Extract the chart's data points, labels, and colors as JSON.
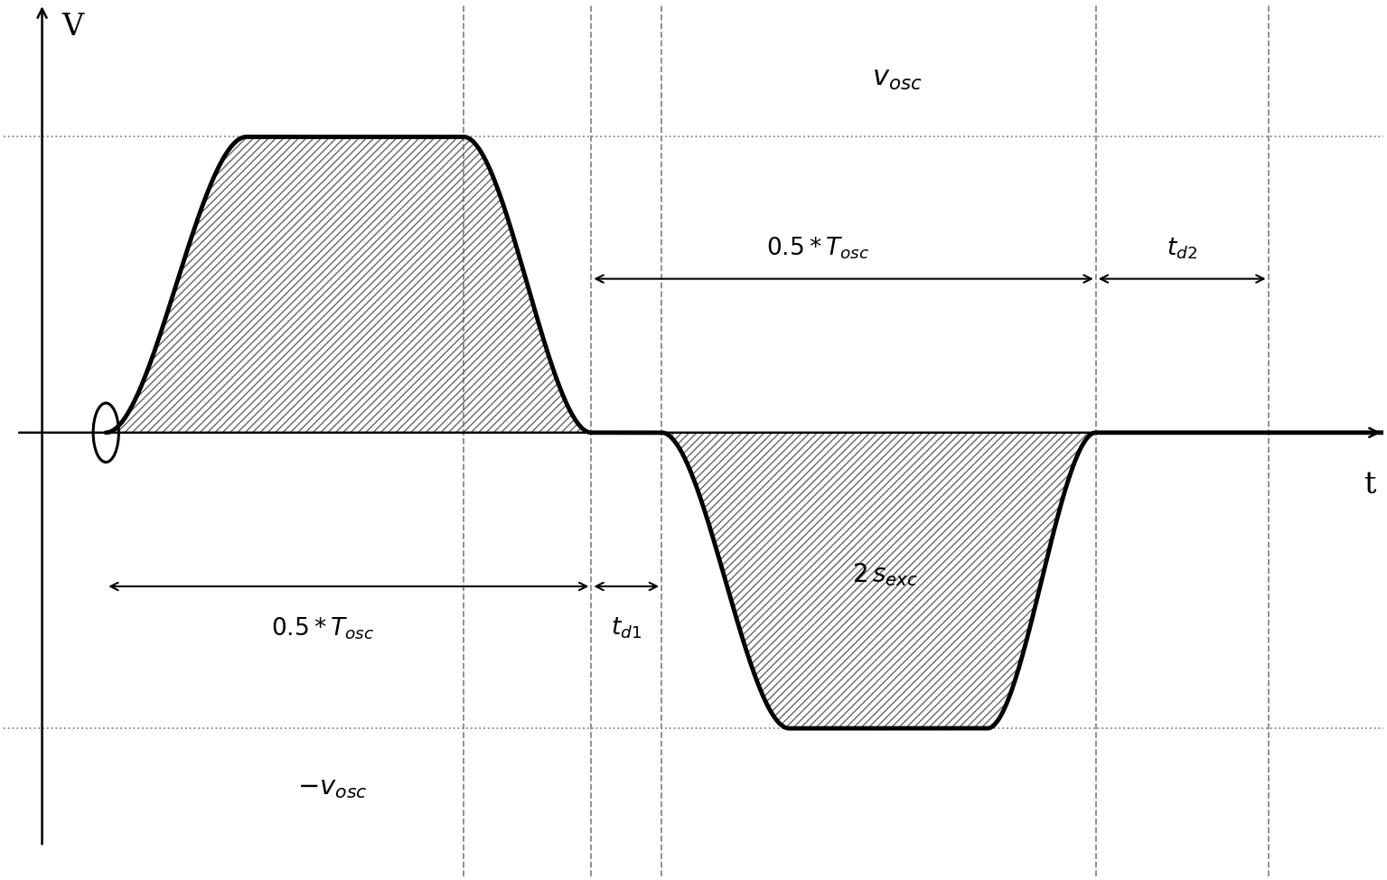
{
  "bg_color": "#ffffff",
  "signal_color": "#000000",
  "hatch_color": "#555555",
  "dashed_color": "#888888",
  "dotted_color": "#888888",
  "v_osc": 1.0,
  "t_start": 0.5,
  "t_rise_start": 0.5,
  "t_rise_end": 1.6,
  "t_flat_start": 1.6,
  "t_flat_end": 3.3,
  "t_fall_start": 3.3,
  "t_fall_end": 4.3,
  "t_zero1_start": 4.3,
  "t_zero1_end": 4.85,
  "t_neg_fall_start": 4.85,
  "t_neg_fall_end": 5.85,
  "t_neg_flat_start": 5.85,
  "t_neg_flat_end": 7.4,
  "t_neg_rise_start": 7.4,
  "t_neg_rise_end": 8.25,
  "t_zero2_start": 8.25,
  "t_zero2_end": 9.6,
  "dashed_lines_x": [
    3.3,
    4.3,
    4.85,
    8.25,
    9.6
  ],
  "xlim": [
    -0.3,
    10.5
  ],
  "ylim": [
    -1.5,
    1.45
  ]
}
